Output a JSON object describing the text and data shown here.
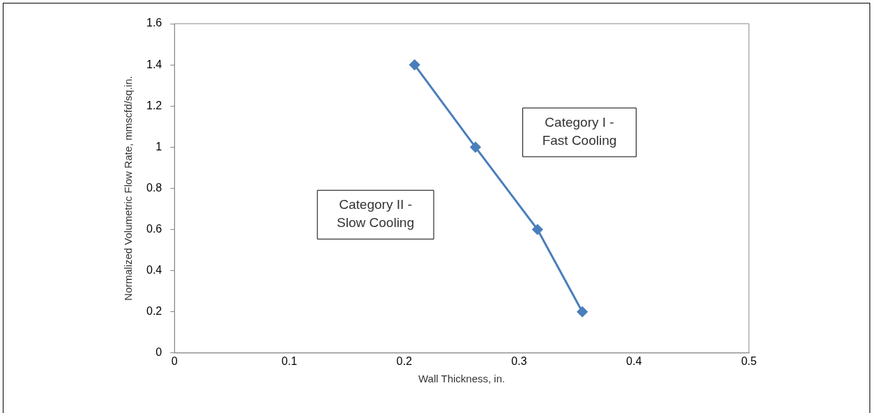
{
  "chart_data": {
    "type": "line",
    "xlabel": "Wall Thickness, in.",
    "ylabel": "Normalized Volumetric Flow Rate, mmscfd/sq.in.",
    "x": [
      0.209,
      0.262,
      0.316,
      0.355
    ],
    "series": [
      {
        "color": "#4a7ebb",
        "values": [
          1.4,
          1.0,
          0.6,
          0.2
        ]
      }
    ],
    "xlim": [
      0,
      0.5
    ],
    "xticks": [
      0,
      0.1,
      0.2,
      0.3,
      0.4,
      0.5
    ],
    "ylim": [
      0,
      1.6
    ],
    "yticks": [
      0,
      0.2,
      0.4,
      0.6,
      0.8,
      1,
      1.2,
      1.4,
      1.6
    ],
    "grid": false,
    "legend": false,
    "marker": "diamond",
    "line_style": "solid",
    "annotations": [
      "Category II -\nSlow Cooling",
      "Category I -\nFast Cooling"
    ]
  }
}
